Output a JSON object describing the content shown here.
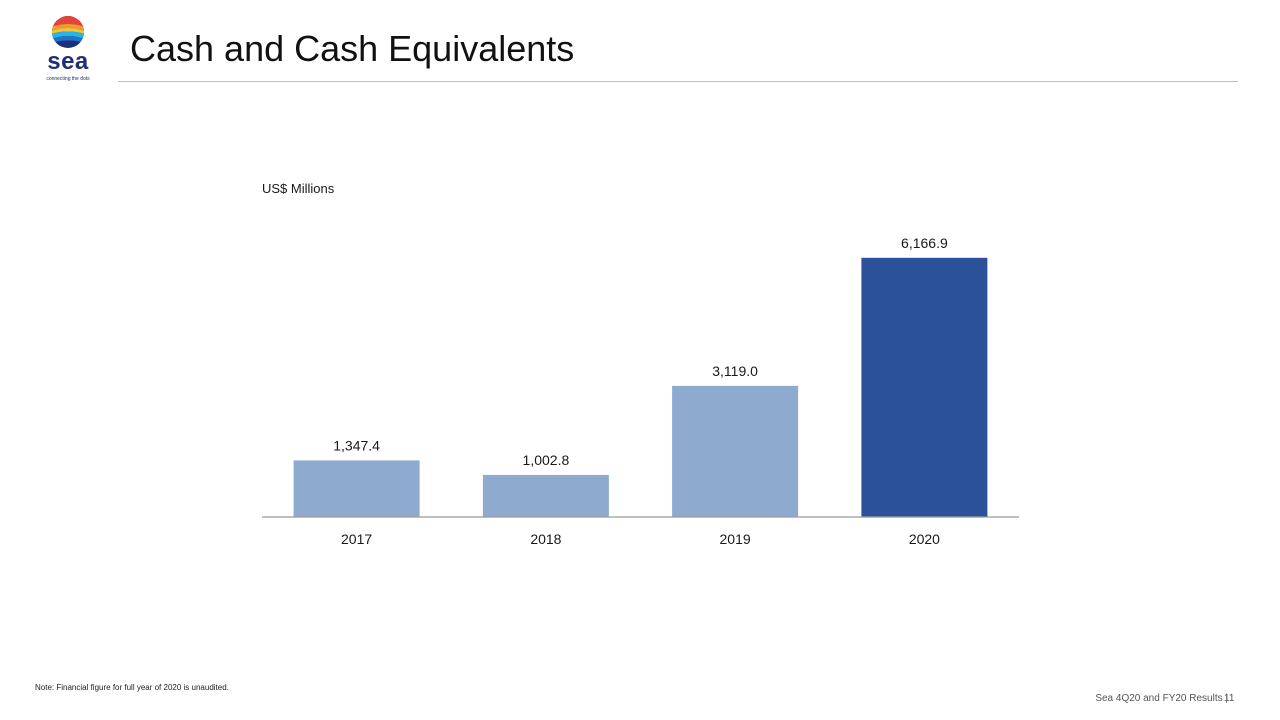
{
  "header": {
    "logo_text": "sea",
    "logo_tagline": "connecting the dots",
    "title": "Cash and Cash Equivalents"
  },
  "chart_data": {
    "type": "bar",
    "categories": [
      "2017",
      "2018",
      "2019",
      "2020"
    ],
    "values": [
      1347.4,
      1002.8,
      3119.0,
      6166.9
    ],
    "value_labels": [
      "1,347.4",
      "1,002.8",
      "3,119.0",
      "6,166.9"
    ],
    "title": "",
    "xlabel": "",
    "ylabel": "US$ Millions",
    "ylim": [
      0,
      6900
    ],
    "grid": false,
    "bar_colors": [
      "#8faacf",
      "#8faacf",
      "#8faacf",
      "#2b5299"
    ],
    "axis_color": "#9a9a9a"
  },
  "footer": {
    "note": "Note: Financial figure for full year of 2020 is unaudited.",
    "deck_label": "Sea 4Q20 and FY20 Results |",
    "page_number": "11"
  }
}
